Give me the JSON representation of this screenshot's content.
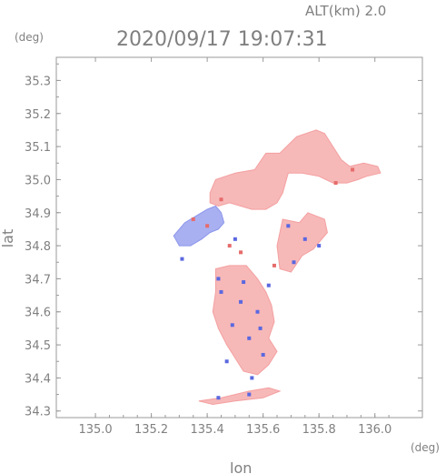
{
  "header": {
    "altitude_label": "ALT(km) 2.0",
    "timestamp": "2020/09/17 19:07:31"
  },
  "chart_data": {
    "type": "heatmap",
    "title": "2020/09/17 19:07:31",
    "subtitle": "ALT(km) 2.0",
    "xlabel": "lon",
    "ylabel": "lat",
    "x_unit": "(deg)",
    "y_unit": "(deg)",
    "xlim": [
      134.86,
      136.17
    ],
    "ylim": [
      34.28,
      35.37
    ],
    "x_ticks": [
      "135.0",
      "135.2",
      "135.4",
      "135.6",
      "135.8",
      "136.0"
    ],
    "y_ticks": [
      "34.3",
      "34.4",
      "34.5",
      "34.6",
      "34.7",
      "34.8",
      "34.9",
      "35.0",
      "35.1",
      "35.2",
      "35.3"
    ],
    "grid": false,
    "colors": {
      "positive": "#f4a0a0",
      "negative": "#8c96ec",
      "axis": "#9a9a9a"
    },
    "regions": [
      {
        "name": "north-pink",
        "sign": "positive",
        "points": [
          [
            135.41,
            34.96
          ],
          [
            135.43,
            35.0
          ],
          [
            135.5,
            35.02
          ],
          [
            135.57,
            35.03
          ],
          [
            135.61,
            35.08
          ],
          [
            135.66,
            35.08
          ],
          [
            135.72,
            35.13
          ],
          [
            135.79,
            35.15
          ],
          [
            135.82,
            35.14
          ],
          [
            135.85,
            35.1
          ],
          [
            135.88,
            35.06
          ],
          [
            135.91,
            35.04
          ],
          [
            135.96,
            35.05
          ],
          [
            136.01,
            35.04
          ],
          [
            136.02,
            35.02
          ],
          [
            135.97,
            35.01
          ],
          [
            135.94,
            35.0
          ],
          [
            135.9,
            34.99
          ],
          [
            135.85,
            34.99
          ],
          [
            135.8,
            35.01
          ],
          [
            135.74,
            35.02
          ],
          [
            135.69,
            35.02
          ],
          [
            135.67,
            34.96
          ],
          [
            135.65,
            34.93
          ],
          [
            135.61,
            34.91
          ],
          [
            135.56,
            34.91
          ],
          [
            135.52,
            34.92
          ],
          [
            135.48,
            34.93
          ],
          [
            135.44,
            34.92
          ],
          [
            135.41,
            34.93
          ]
        ]
      },
      {
        "name": "west-blue",
        "sign": "negative",
        "points": [
          [
            135.28,
            34.83
          ],
          [
            135.32,
            34.87
          ],
          [
            135.36,
            34.89
          ],
          [
            135.4,
            34.91
          ],
          [
            135.43,
            34.92
          ],
          [
            135.45,
            34.9
          ],
          [
            135.46,
            34.87
          ],
          [
            135.44,
            34.85
          ],
          [
            135.41,
            34.84
          ],
          [
            135.38,
            34.82
          ],
          [
            135.34,
            34.8
          ],
          [
            135.3,
            34.8
          ]
        ]
      },
      {
        "name": "central-pink",
        "sign": "positive",
        "points": [
          [
            135.43,
            34.73
          ],
          [
            135.48,
            34.74
          ],
          [
            135.54,
            34.74
          ],
          [
            135.58,
            34.7
          ],
          [
            135.61,
            34.66
          ],
          [
            135.63,
            34.62
          ],
          [
            135.64,
            34.57
          ],
          [
            135.62,
            34.52
          ],
          [
            135.65,
            34.48
          ],
          [
            135.62,
            34.44
          ],
          [
            135.58,
            34.41
          ],
          [
            135.53,
            34.42
          ],
          [
            135.5,
            34.46
          ],
          [
            135.47,
            34.5
          ],
          [
            135.44,
            34.55
          ],
          [
            135.42,
            34.6
          ],
          [
            135.43,
            34.66
          ]
        ]
      },
      {
        "name": "east-islands-pink",
        "sign": "positive",
        "points": [
          [
            135.67,
            34.88
          ],
          [
            135.73,
            34.87
          ],
          [
            135.76,
            34.9
          ],
          [
            135.82,
            34.88
          ],
          [
            135.83,
            34.84
          ],
          [
            135.78,
            34.79
          ],
          [
            135.74,
            34.77
          ],
          [
            135.7,
            34.72
          ],
          [
            135.66,
            34.73
          ],
          [
            135.65,
            34.8
          ]
        ]
      },
      {
        "name": "south-strip-pink",
        "sign": "positive",
        "points": [
          [
            135.37,
            34.33
          ],
          [
            135.45,
            34.34
          ],
          [
            135.55,
            34.36
          ],
          [
            135.62,
            34.37
          ],
          [
            135.66,
            34.36
          ],
          [
            135.6,
            34.34
          ],
          [
            135.5,
            34.33
          ],
          [
            135.42,
            34.32
          ]
        ]
      }
    ],
    "speckles": [
      {
        "sign": "negative",
        "points": [
          [
            135.45,
            34.66
          ],
          [
            135.52,
            34.63
          ],
          [
            135.58,
            34.6
          ],
          [
            135.49,
            34.56
          ],
          [
            135.55,
            34.52
          ],
          [
            135.6,
            34.47
          ],
          [
            135.47,
            34.45
          ],
          [
            135.56,
            34.4
          ],
          [
            135.62,
            34.68
          ],
          [
            135.44,
            34.7
          ],
          [
            135.69,
            34.86
          ],
          [
            135.75,
            34.82
          ],
          [
            135.8,
            34.8
          ],
          [
            135.71,
            34.75
          ],
          [
            135.55,
            34.35
          ],
          [
            135.44,
            34.34
          ],
          [
            135.5,
            34.82
          ],
          [
            135.31,
            34.76
          ],
          [
            135.53,
            34.69
          ],
          [
            135.59,
            34.55
          ]
        ]
      },
      {
        "sign": "positive",
        "points": [
          [
            135.35,
            34.88
          ],
          [
            135.4,
            34.86
          ],
          [
            135.48,
            34.8
          ],
          [
            135.52,
            34.78
          ],
          [
            135.86,
            34.99
          ],
          [
            135.92,
            35.03
          ],
          [
            135.45,
            34.94
          ],
          [
            135.64,
            34.74
          ]
        ]
      }
    ]
  }
}
